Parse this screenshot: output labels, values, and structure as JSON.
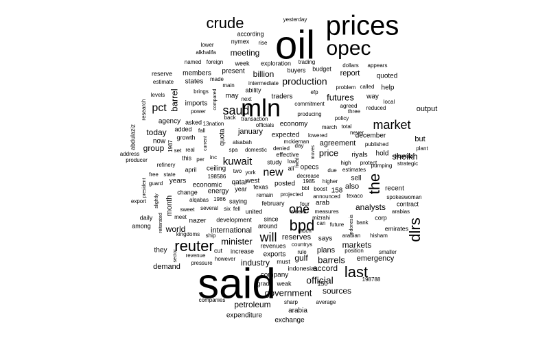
{
  "cloud": {
    "color": "#000000",
    "background": "#ffffff",
    "words": [
      {
        "t": "said"
      },
      {
        "t": "oil"
      },
      {
        "t": "prices"
      },
      {
        "t": "opec"
      },
      {
        "t": "mln"
      },
      {
        "t": "crude"
      },
      {
        "t": "bpd"
      },
      {
        "t": "reuter"
      },
      {
        "t": "market"
      },
      {
        "t": "saudi"
      },
      {
        "t": "last"
      },
      {
        "t": "the"
      },
      {
        "t": "dlrs"
      },
      {
        "t": "one"
      },
      {
        "t": "will"
      },
      {
        "t": "kuwait"
      },
      {
        "t": "pct"
      },
      {
        "t": "barrel"
      },
      {
        "t": "new"
      },
      {
        "t": "production"
      },
      {
        "t": "official"
      },
      {
        "t": "government"
      },
      {
        "t": "minister"
      },
      {
        "t": "industry"
      },
      {
        "t": "barrels"
      },
      {
        "t": "markets"
      },
      {
        "t": "petroleum"
      },
      {
        "t": "meeting"
      },
      {
        "t": "billion"
      },
      {
        "t": "futures"
      },
      {
        "t": "sheikh"
      },
      {
        "t": "price"
      },
      {
        "t": "analysts"
      },
      {
        "t": "sources"
      },
      {
        "t": "accord"
      },
      {
        "t": "gulf"
      },
      {
        "t": "world"
      },
      {
        "t": "group"
      },
      {
        "t": "today"
      },
      {
        "t": "month"
      },
      {
        "t": "january"
      },
      {
        "t": "output"
      },
      {
        "t": "agreement"
      },
      {
        "t": "report"
      },
      {
        "t": "quota"
      },
      {
        "t": "emergency"
      },
      {
        "t": "international"
      },
      {
        "t": "demand"
      },
      {
        "t": "reserves"
      },
      {
        "t": "plans"
      },
      {
        "t": "also"
      },
      {
        "t": "members"
      },
      {
        "t": "states"
      },
      {
        "t": "present"
      },
      {
        "t": "may"
      },
      {
        "t": "traders"
      },
      {
        "t": "economy"
      },
      {
        "t": "expected"
      },
      {
        "t": "december"
      },
      {
        "t": "quoted"
      },
      {
        "t": "help"
      },
      {
        "t": "way"
      },
      {
        "t": "but"
      },
      {
        "t": "riyals"
      },
      {
        "t": "hold"
      },
      {
        "t": "says"
      },
      {
        "t": "exports"
      },
      {
        "t": "company"
      },
      {
        "t": "exchange"
      },
      {
        "t": "arabia"
      },
      {
        "t": "expenditure"
      },
      {
        "t": "they"
      },
      {
        "t": "now"
      },
      {
        "t": "agency"
      },
      {
        "t": "years"
      },
      {
        "t": "economic"
      },
      {
        "t": "energy"
      },
      {
        "t": "qatar"
      },
      {
        "t": "ceiling"
      },
      {
        "t": "west"
      },
      {
        "t": "posted"
      },
      {
        "t": "sell"
      },
      {
        "t": "recent"
      },
      {
        "t": "according"
      },
      {
        "t": "nymex"
      },
      {
        "t": "week"
      },
      {
        "t": "exploration"
      },
      {
        "t": "budget"
      },
      {
        "t": "buyers"
      },
      {
        "t": "reserve"
      },
      {
        "t": "imports"
      },
      {
        "t": "ability"
      },
      {
        "t": "growth"
      },
      {
        "t": "added"
      },
      {
        "t": "april"
      },
      {
        "t": "this"
      },
      {
        "t": "year"
      },
      {
        "t": "texas"
      },
      {
        "t": "february"
      },
      {
        "t": "arab"
      },
      {
        "t": "contract"
      },
      {
        "t": "emirates"
      },
      {
        "t": "corp"
      },
      {
        "t": "nazer"
      },
      {
        "t": "development"
      },
      {
        "t": "united"
      },
      {
        "t": "since"
      },
      {
        "t": "around"
      },
      {
        "t": "cut"
      },
      {
        "t": "increase"
      },
      {
        "t": "revenues"
      },
      {
        "t": "must"
      },
      {
        "t": "indonesias"
      },
      {
        "t": "weak"
      },
      {
        "t": "grade"
      },
      {
        "t": "sharp"
      },
      {
        "t": "average"
      },
      {
        "t": "companies"
      },
      {
        "t": "pressure"
      },
      {
        "t": "however"
      },
      {
        "t": "revenue"
      },
      {
        "t": "saying"
      },
      {
        "t": "change"
      },
      {
        "t": "alqabas"
      },
      {
        "t": "198586"
      },
      {
        "t": "1986"
      },
      {
        "t": "yesterday"
      },
      {
        "t": "lower"
      },
      {
        "t": "rise"
      },
      {
        "t": "alkhalifa"
      },
      {
        "t": "named"
      },
      {
        "t": "foreign"
      },
      {
        "t": "trading"
      },
      {
        "t": "dollars"
      },
      {
        "t": "appears"
      },
      {
        "t": "made"
      },
      {
        "t": "main"
      },
      {
        "t": "intermediate"
      },
      {
        "t": "estimate"
      },
      {
        "t": "levels"
      },
      {
        "t": "research"
      },
      {
        "t": "brings"
      },
      {
        "t": "power"
      },
      {
        "t": "compared"
      },
      {
        "t": "next"
      },
      {
        "t": "problem"
      },
      {
        "t": "called"
      },
      {
        "t": "efp"
      },
      {
        "t": "commitment"
      },
      {
        "t": "agreed"
      },
      {
        "t": "local"
      },
      {
        "t": "producing"
      },
      {
        "t": "three"
      },
      {
        "t": "reduced"
      },
      {
        "t": "policy"
      },
      {
        "t": "kuwaits"
      },
      {
        "t": "abdulaziz"
      },
      {
        "t": "asked"
      },
      {
        "t": "13nation"
      },
      {
        "t": "transaction"
      },
      {
        "t": "back"
      },
      {
        "t": "officials"
      },
      {
        "t": "march"
      },
      {
        "t": "total"
      },
      {
        "t": "never"
      },
      {
        "t": "published"
      },
      {
        "t": "plant"
      },
      {
        "t": "lowered"
      },
      {
        "t": "effective"
      },
      {
        "t": "fall"
      },
      {
        "t": "current"
      },
      {
        "t": "1987"
      },
      {
        "t": "set"
      },
      {
        "t": "real"
      },
      {
        "t": "alsabah"
      },
      {
        "t": "domestic"
      },
      {
        "t": "spa"
      },
      {
        "t": "denied"
      },
      {
        "t": "day"
      },
      {
        "t": "mckiernan"
      },
      {
        "t": "moves"
      },
      {
        "t": "fixed"
      },
      {
        "t": "pumping"
      },
      {
        "t": "strategic"
      },
      {
        "t": "address"
      },
      {
        "t": "producer"
      },
      {
        "t": "refinery"
      },
      {
        "t": "inc"
      },
      {
        "t": "per"
      },
      {
        "t": "study"
      },
      {
        "t": "low"
      },
      {
        "t": "ali"
      },
      {
        "t": "opecs"
      },
      {
        "t": "high"
      },
      {
        "t": "protect"
      },
      {
        "t": "due"
      },
      {
        "t": "estimates"
      },
      {
        "t": "free"
      },
      {
        "t": "state"
      },
      {
        "t": "two"
      },
      {
        "t": "york"
      },
      {
        "t": "decrease"
      },
      {
        "t": "president"
      },
      {
        "t": "guard"
      },
      {
        "t": "1985"
      },
      {
        "t": "higher"
      },
      {
        "t": "bbl"
      },
      {
        "t": "boost"
      },
      {
        "t": "158"
      },
      {
        "t": "export"
      },
      {
        "t": "slightly"
      },
      {
        "t": "remain"
      },
      {
        "t": "projected"
      },
      {
        "t": "announced"
      },
      {
        "t": "texaco"
      },
      {
        "t": "spokeswoman"
      },
      {
        "t": "arabias"
      },
      {
        "t": "daily"
      },
      {
        "t": "sweet"
      },
      {
        "t": "several"
      },
      {
        "t": "six"
      },
      {
        "t": "fell"
      },
      {
        "t": "four"
      },
      {
        "t": "weeks"
      },
      {
        "t": "measures"
      },
      {
        "t": "meet"
      },
      {
        "t": "among"
      },
      {
        "t": "reiterated"
      },
      {
        "t": "kingdoms"
      },
      {
        "t": "ship"
      },
      {
        "t": "mizrahi"
      },
      {
        "t": "can"
      },
      {
        "t": "future"
      },
      {
        "t": "bank"
      },
      {
        "t": "indonesia"
      },
      {
        "t": "much"
      },
      {
        "t": "hisham"
      },
      {
        "t": "arabian"
      },
      {
        "t": "sector"
      },
      {
        "t": "countrys"
      },
      {
        "t": "rule"
      },
      {
        "t": "position"
      },
      {
        "t": "smaller"
      },
      {
        "t": "198788"
      },
      {
        "t": "150"
      }
    ]
  }
}
